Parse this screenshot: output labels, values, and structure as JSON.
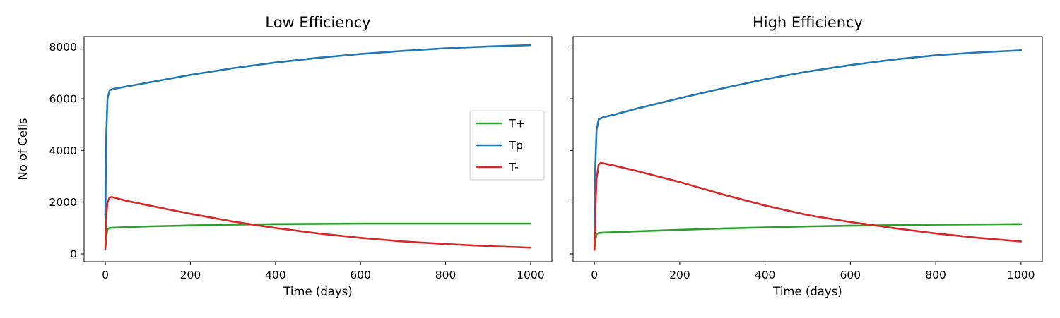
{
  "chart_data": [
    {
      "type": "line",
      "title": "Low Efficiency",
      "xlabel": "Time (days)",
      "ylabel": "No of Cells",
      "xlim": [
        -50,
        1050
      ],
      "ylim": [
        -300,
        8400
      ],
      "xticks": [
        0,
        200,
        400,
        600,
        800,
        1000
      ],
      "xtick_labels": [
        "0",
        "200",
        "400",
        "600",
        "800",
        "1000"
      ],
      "yticks": [
        0,
        2000,
        4000,
        6000,
        8000
      ],
      "ytick_labels": [
        "0",
        "2000",
        "4000",
        "6000",
        "8000"
      ],
      "grid": false,
      "legend": "center-right",
      "series": [
        {
          "name": "T+",
          "color": "#2ca02c",
          "x": [
            0,
            2,
            5,
            10,
            20,
            50,
            100,
            200,
            300,
            400,
            500,
            600,
            700,
            800,
            900,
            1000
          ],
          "y": [
            200,
            650,
            950,
            1000,
            1010,
            1030,
            1060,
            1100,
            1130,
            1150,
            1160,
            1170,
            1170,
            1170,
            1170,
            1170
          ]
        },
        {
          "name": "Tp",
          "color": "#1f77b4",
          "x": [
            0,
            2,
            5,
            10,
            20,
            50,
            100,
            200,
            300,
            400,
            500,
            600,
            700,
            800,
            900,
            1000
          ],
          "y": [
            1450,
            4500,
            6000,
            6330,
            6380,
            6470,
            6620,
            6920,
            7180,
            7400,
            7580,
            7730,
            7850,
            7950,
            8020,
            8070
          ]
        },
        {
          "name": "T-",
          "color": "#d62728",
          "x": [
            0,
            2,
            5,
            10,
            15,
            50,
            100,
            200,
            300,
            400,
            500,
            600,
            700,
            800,
            900,
            1000
          ],
          "y": [
            200,
            1400,
            2000,
            2180,
            2200,
            2050,
            1880,
            1550,
            1250,
            1000,
            790,
            620,
            480,
            380,
            300,
            240
          ]
        }
      ]
    },
    {
      "type": "line",
      "title": "High Efficiency",
      "xlabel": "Time (days)",
      "ylabel": "",
      "xlim": [
        -50,
        1050
      ],
      "ylim": [
        -300,
        8400
      ],
      "xticks": [
        0,
        200,
        400,
        600,
        800,
        1000
      ],
      "xtick_labels": [
        "0",
        "200",
        "400",
        "600",
        "800",
        "1000"
      ],
      "yticks": [
        0,
        2000,
        4000,
        6000,
        8000
      ],
      "ytick_labels": [],
      "grid": false,
      "legend": "",
      "series": [
        {
          "name": "T+",
          "color": "#2ca02c",
          "x": [
            0,
            2,
            5,
            10,
            20,
            50,
            100,
            200,
            300,
            400,
            500,
            600,
            700,
            800,
            900,
            1000
          ],
          "y": [
            150,
            500,
            760,
            810,
            820,
            840,
            870,
            930,
            980,
            1020,
            1060,
            1090,
            1110,
            1130,
            1140,
            1150
          ]
        },
        {
          "name": "Tp",
          "color": "#1f77b4",
          "x": [
            0,
            2,
            5,
            10,
            20,
            50,
            100,
            200,
            300,
            400,
            500,
            600,
            700,
            800,
            900,
            1000
          ],
          "y": [
            1100,
            3300,
            4800,
            5200,
            5280,
            5400,
            5620,
            6020,
            6400,
            6750,
            7050,
            7300,
            7510,
            7680,
            7790,
            7870
          ]
        },
        {
          "name": "T-",
          "color": "#d62728",
          "x": [
            0,
            2,
            5,
            10,
            15,
            50,
            100,
            200,
            300,
            400,
            500,
            600,
            650,
            700,
            800,
            900,
            1000
          ],
          "y": [
            150,
            1600,
            2900,
            3450,
            3520,
            3400,
            3200,
            2780,
            2300,
            1870,
            1500,
            1230,
            1120,
            1000,
            790,
            620,
            480
          ]
        }
      ]
    }
  ]
}
